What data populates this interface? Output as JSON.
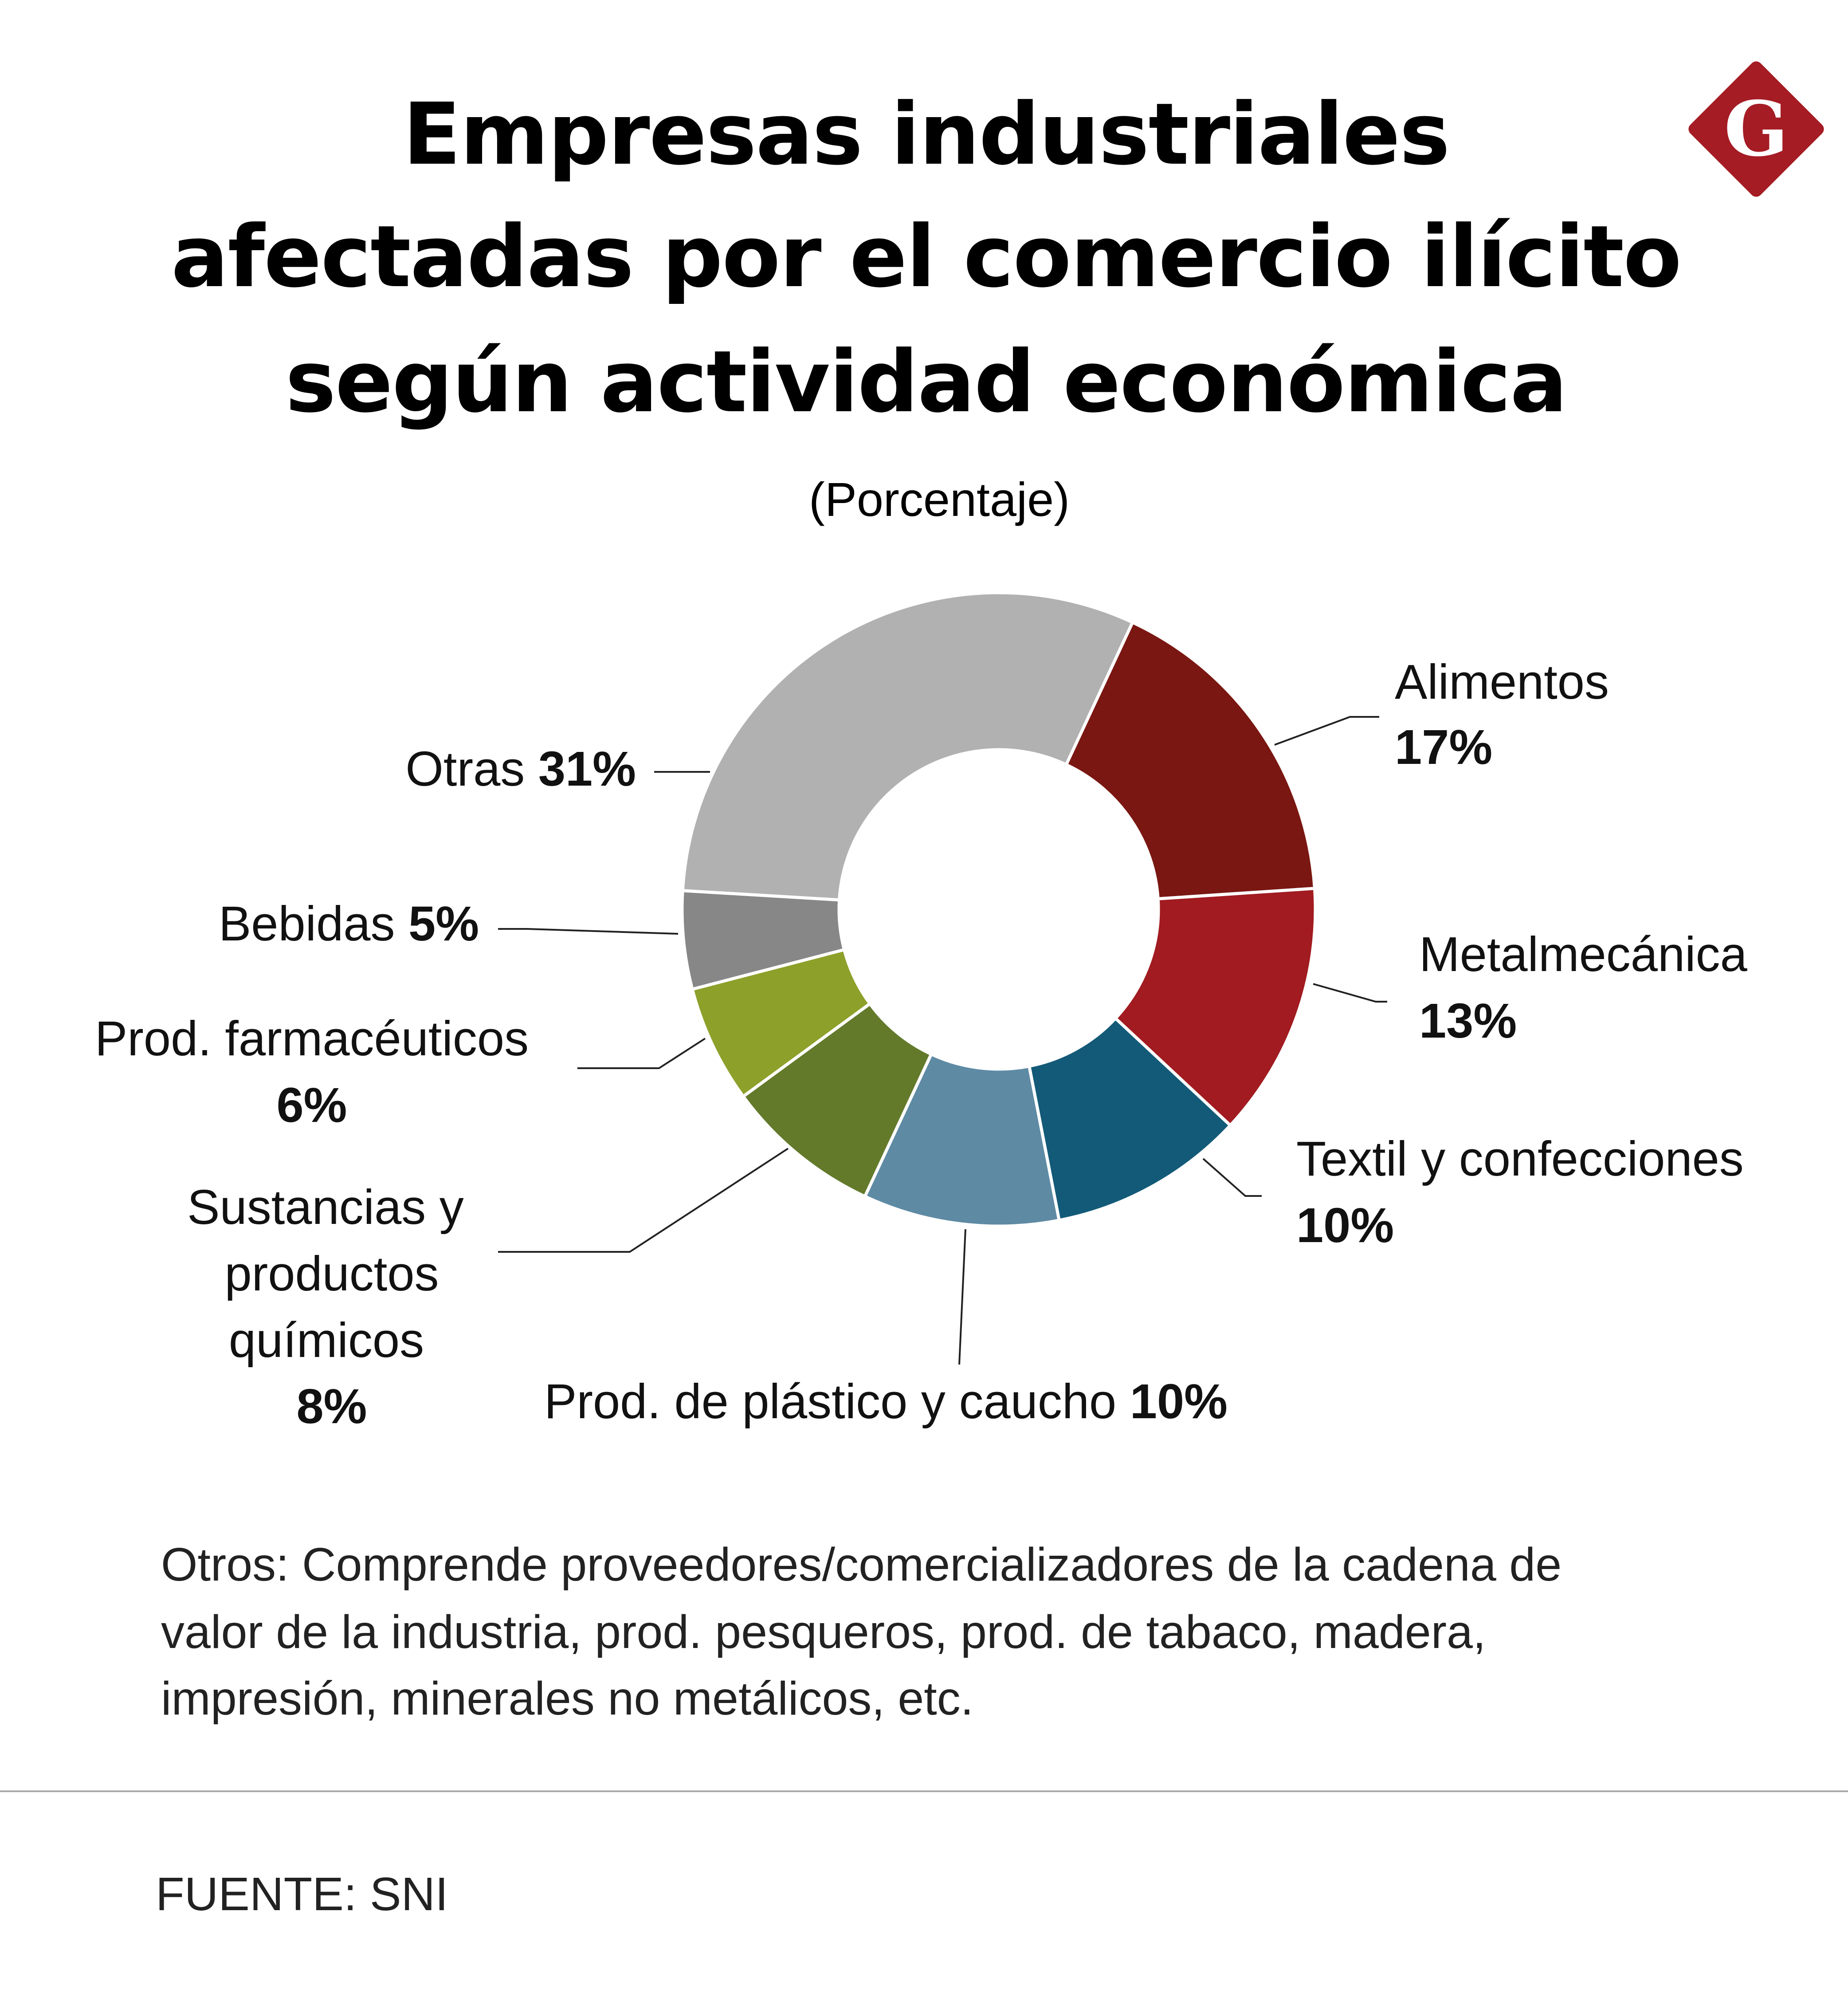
{
  "title_lines": [
    "Empresas industriales",
    "afectadas por el comercio ilícito",
    "según actividad económica"
  ],
  "subtitle": "(Porcentaje)",
  "logo": {
    "letter": "G",
    "color": "#a51c24"
  },
  "chart_data": {
    "type": "pie",
    "variant": "donut",
    "title": "Empresas industriales afectadas por el comercio ilícito según actividad económica",
    "subtitle": "(Porcentaje)",
    "unit": "%",
    "slices": [
      {
        "label": "Alimentos",
        "value": 17,
        "display": "17%",
        "color": "#7a1712"
      },
      {
        "label": "Metalmecánica",
        "value": 13,
        "display": "13%",
        "color": "#a11b20"
      },
      {
        "label": "Textil y confecciones",
        "value": 10,
        "display": "10%",
        "color": "#135a78"
      },
      {
        "label": "Prod. de plástico y caucho",
        "value": 10,
        "display": "10%",
        "color": "#5e8aa4"
      },
      {
        "label": "Sustancias y productos químicos",
        "label_lines": [
          "Sustancias y",
          "productos",
          "químicos"
        ],
        "value": 8,
        "display": "8%",
        "color": "#637a2b"
      },
      {
        "label": "Prod. farmacéuticos",
        "value": 6,
        "display": "6%",
        "color": "#8da02a"
      },
      {
        "label": "Bebidas",
        "value": 5,
        "display": "5%",
        "color": "#878787"
      },
      {
        "label": "Otras",
        "value": 31,
        "display": "31%",
        "color": "#b2b1b1"
      }
    ]
  },
  "footnote_lines": [
    "Otros: Comprende proveedores/comercializadores de la cadena de",
    "valor de la industria,  prod. pesqueros, prod. de tabaco, madera,",
    "impresión, minerales no metálicos, etc."
  ],
  "source": "FUENTE: SNI"
}
